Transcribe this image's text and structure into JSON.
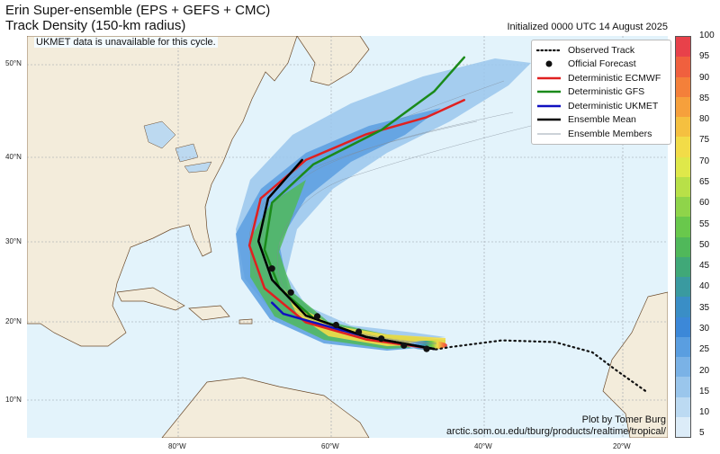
{
  "title": {
    "line1": "Erin Super-ensemble (EPS + GEFS + CMC)",
    "line2": "Track Density (150-km radius)",
    "line3": "UKMET data is unavailable for this cycle.",
    "initialized": "Initialized 0000 UTC 14 August 2025"
  },
  "note": "UKMET data is unavailable for this cycle.",
  "credit": {
    "line1": "Plot by Tomer Burg",
    "line2": "arctic.som.ou.edu/tburg/products/realtime/tropical/"
  },
  "axes": {
    "lat_labels": [
      "50°N",
      "40°N",
      "30°N",
      "20°N",
      "10°N"
    ],
    "lon_labels": [
      "80°W",
      "60°W",
      "40°W",
      "20°W"
    ]
  },
  "legend": [
    {
      "label": "Observed Track",
      "style": "dotted",
      "color": "#111111"
    },
    {
      "label": "Official Forecast",
      "style": "dot",
      "color": "#111111"
    },
    {
      "label": "Deterministic ECMWF",
      "style": "line",
      "color": "#e02020"
    },
    {
      "label": "Deterministic GFS",
      "style": "line",
      "color": "#1a8a1a"
    },
    {
      "label": "Deterministic UKMET",
      "style": "line",
      "color": "#1010c0"
    },
    {
      "label": "Ensemble Mean",
      "style": "line",
      "color": "#000000"
    },
    {
      "label": "Ensemble Members",
      "style": "thin",
      "color": "#9aa4b0"
    }
  ],
  "colorbar": {
    "labels": [
      "100",
      "95",
      "90",
      "85",
      "80",
      "75",
      "70",
      "65",
      "60",
      "55",
      "50",
      "45",
      "40",
      "35",
      "30",
      "25",
      "20",
      "15",
      "10",
      "5"
    ],
    "colors": [
      "#e8414a",
      "#f0603e",
      "#f4803a",
      "#f6a03c",
      "#f5c040",
      "#f2dc48",
      "#dfe84a",
      "#b8e048",
      "#8fd44a",
      "#69c84c",
      "#50b85a",
      "#40a878",
      "#3a9aa0",
      "#3a8ec6",
      "#3c88d8",
      "#5a9ee0",
      "#7ab2e6",
      "#9ac6ec",
      "#bcdaf2",
      "#dcecf8"
    ]
  },
  "chart_data": {
    "type": "map",
    "observed_track": [
      [
        -18,
        11.5
      ],
      [
        -22,
        14
      ],
      [
        -25,
        16
      ],
      [
        -30,
        17.2
      ],
      [
        -37,
        17.4
      ],
      [
        -44,
        16.6
      ],
      [
        -46,
        16.3
      ]
    ],
    "official_forecast": [
      [
        -47,
        16.4
      ],
      [
        -50,
        16.8
      ],
      [
        -53,
        17.6
      ],
      [
        -56,
        18.4
      ],
      [
        -59,
        19.2
      ],
      [
        -61.5,
        20.2
      ],
      [
        -65,
        23
      ],
      [
        -67.5,
        25.8
      ]
    ],
    "ecmwf": [
      [
        -46,
        16.4
      ],
      [
        -55,
        17.5
      ],
      [
        -63,
        19.5
      ],
      [
        -68.5,
        23.5
      ],
      [
        -70.5,
        28.5
      ],
      [
        -69,
        34
      ],
      [
        -63,
        38.5
      ],
      [
        -55,
        41.5
      ],
      [
        -47,
        43.5
      ],
      [
        -42,
        45.5
      ]
    ],
    "gfs": [
      [
        -46,
        16.4
      ],
      [
        -55,
        17.8
      ],
      [
        -62,
        20
      ],
      [
        -66.5,
        23.5
      ],
      [
        -68.5,
        28
      ],
      [
        -67.5,
        33.5
      ],
      [
        -62,
        38
      ],
      [
        -53,
        42
      ],
      [
        -46,
        46.5
      ],
      [
        -42,
        50.5
      ]
    ],
    "ukmet": [
      [
        -46,
        16.4
      ],
      [
        -55,
        17.8
      ],
      [
        -62,
        19.5
      ],
      [
        -66,
        20.5
      ],
      [
        -67.5,
        21.8
      ]
    ],
    "ensemble_mean": [
      [
        -46,
        16.4
      ],
      [
        -55,
        17.8
      ],
      [
        -63,
        20.3
      ],
      [
        -67.5,
        24.5
      ],
      [
        -69.3,
        29
      ],
      [
        -68,
        34
      ],
      [
        -63.5,
        38.5
      ]
    ],
    "extent": {
      "lon": [
        -100,
        -15
      ],
      "lat": [
        6,
        53
      ]
    }
  }
}
